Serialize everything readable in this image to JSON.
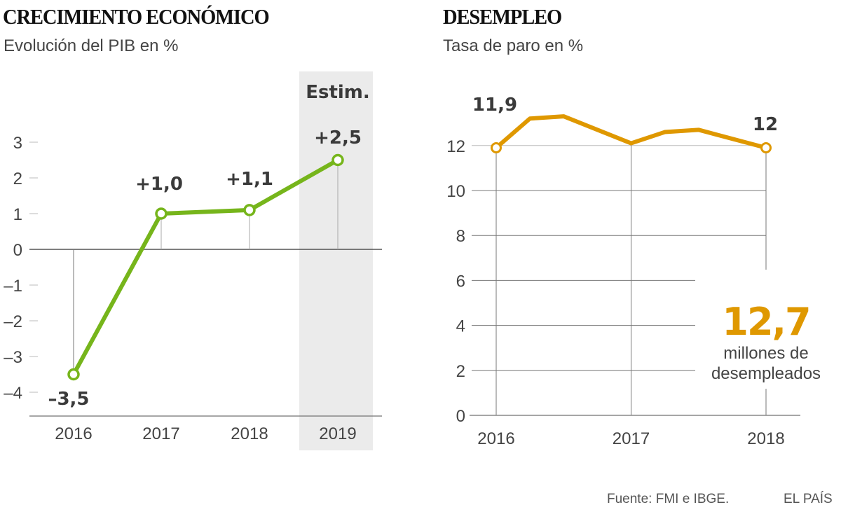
{
  "source": "Fuente: FMI e IBGE.",
  "brand": "EL PAÍS",
  "colors": {
    "gdp_line": "#76b51b",
    "unemp_line": "#df9800",
    "shade": "#ebebeb",
    "text": "#3a3a3a"
  },
  "chart_data": [
    {
      "type": "line",
      "title": "CRECIMIENTO ECONÓMICO",
      "subtitle": "Evolución del PIB en %",
      "xlabel": "",
      "ylabel": "",
      "categories": [
        "2016",
        "2017",
        "2018",
        "2019"
      ],
      "series": [
        {
          "name": "PIB",
          "values": [
            -3.5,
            1.0,
            1.1,
            2.5
          ]
        }
      ],
      "data_labels": [
        "–3,5",
        "+1,0",
        "+1,1",
        "+2,5"
      ],
      "ylim": [
        -4.5,
        3
      ],
      "yticks": [
        3,
        2,
        1,
        0,
        -1,
        -2,
        -3,
        -4
      ],
      "ytick_labels": [
        "3",
        "2",
        "1",
        "0",
        "–1",
        "–2",
        "–3",
        "–4"
      ],
      "highlight": {
        "category": "2019",
        "label": "Estim."
      },
      "grid": false
    },
    {
      "type": "line",
      "title": "DESEMPLEO",
      "subtitle": "Tasa de paro en %",
      "xlabel": "",
      "ylabel": "",
      "x": [
        2016,
        2016.25,
        2016.5,
        2017,
        2017.25,
        2017.5,
        2018
      ],
      "categories": [
        "2016",
        "2017",
        "2018"
      ],
      "series": [
        {
          "name": "Tasa de paro",
          "values": [
            11.9,
            13.2,
            13.3,
            12.1,
            12.6,
            12.7,
            11.9
          ]
        }
      ],
      "endpoint_labels": [
        "11,9",
        "12"
      ],
      "ylim": [
        0,
        12.6
      ],
      "yticks": [
        0,
        2,
        4,
        6,
        8,
        10,
        12
      ],
      "ytick_labels": [
        "0",
        "2",
        "4",
        "6",
        "8",
        "10",
        "12"
      ],
      "annotation": {
        "value": "12,7",
        "line1": "millones de",
        "line2": "desempleados"
      },
      "grid": true
    }
  ]
}
